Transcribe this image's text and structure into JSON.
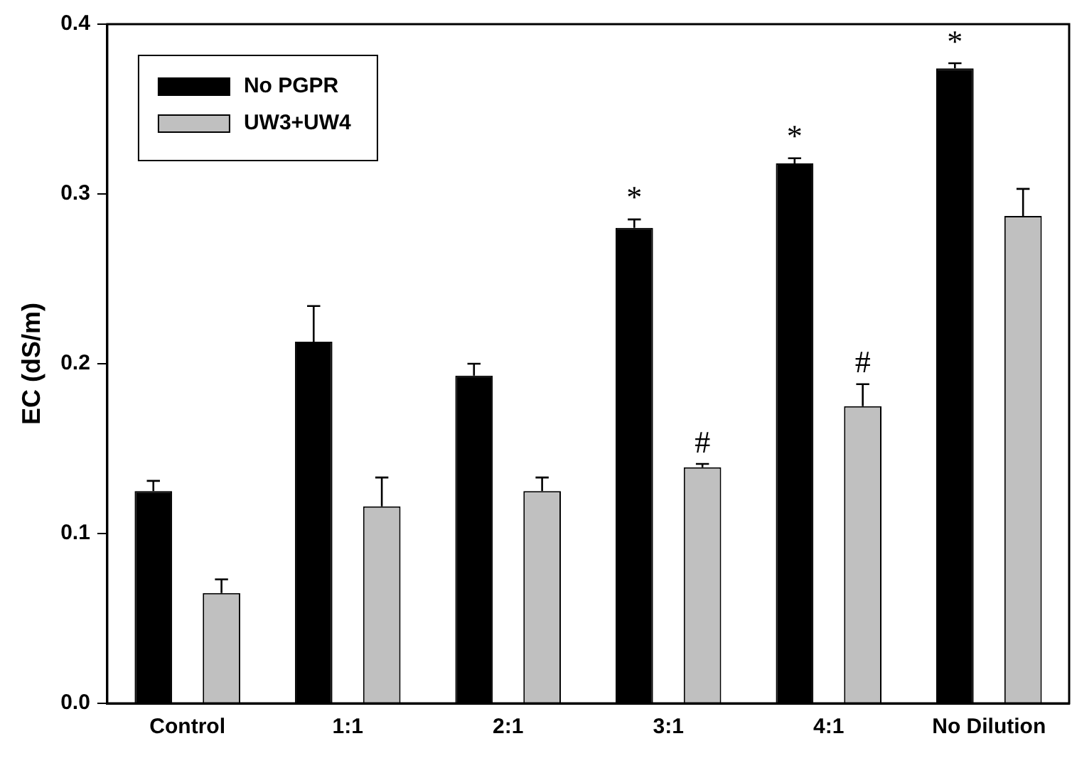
{
  "chart_data": {
    "type": "bar",
    "ylabel": "EC (dS/m)",
    "categories": [
      "Control",
      "1:1",
      "2:1",
      "3:1",
      "4:1",
      "No Dilution"
    ],
    "series": [
      {
        "name": "No PGPR",
        "color": "#000000",
        "values": [
          0.125,
          0.213,
          0.193,
          0.28,
          0.318,
          0.374
        ],
        "errors": [
          [
            0.125,
            0.131
          ],
          [
            0.213,
            0.234
          ],
          [
            0.193,
            0.2
          ],
          [
            0.28,
            0.285
          ],
          [
            0.318,
            0.321
          ],
          [
            0.374,
            0.377
          ]
        ],
        "value_labels": [
          null,
          null,
          null,
          "*",
          "*",
          "*"
        ]
      },
      {
        "name": "UW3+UW4",
        "color": "#c0c0c0",
        "values": [
          0.065,
          0.116,
          0.125,
          0.139,
          0.175,
          0.287
        ],
        "errors": [
          [
            0.065,
            0.073
          ],
          [
            0.116,
            0.133
          ],
          [
            0.125,
            0.133
          ],
          [
            0.139,
            0.141
          ],
          [
            0.175,
            0.188
          ],
          [
            0.287,
            0.303
          ]
        ],
        "value_labels": [
          null,
          null,
          null,
          "#",
          "#",
          null
        ]
      }
    ],
    "ylim": [
      0,
      0.4
    ],
    "yticks": [
      {
        "value": 0,
        "label": "0.0"
      },
      {
        "value": 0.1,
        "label": "0.1"
      },
      {
        "value": 0.2,
        "label": "0.2"
      },
      {
        "value": 0.3,
        "label": "0.3"
      },
      {
        "value": 0.4,
        "label": "0.4"
      }
    ],
    "grid": false,
    "legend": "top left"
  }
}
